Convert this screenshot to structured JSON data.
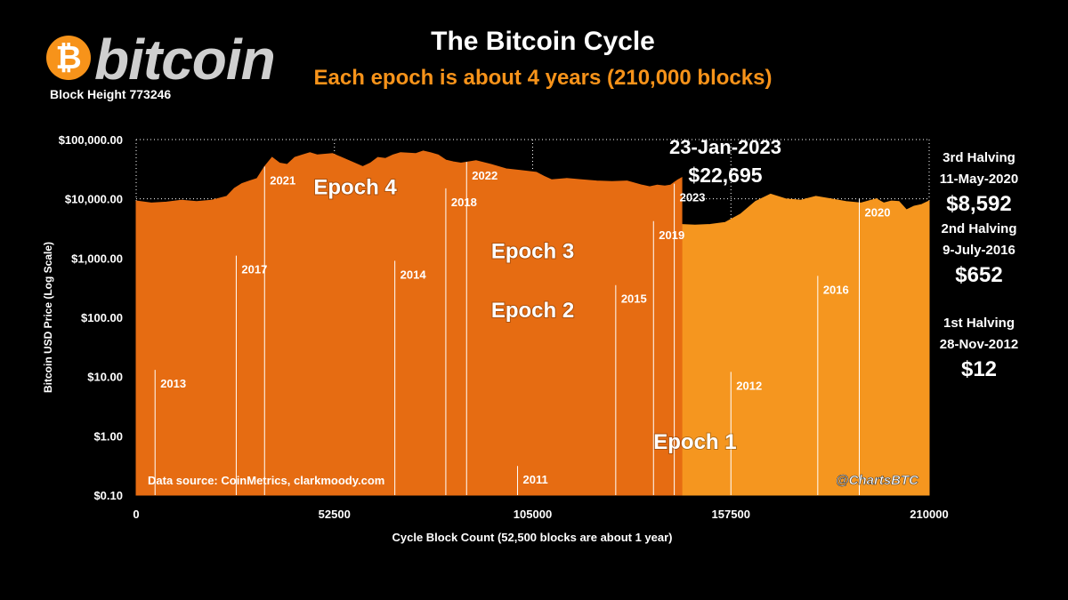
{
  "header": {
    "logo_symbol": "₿",
    "logo_text": "bitcoin",
    "block_height": "Block Height 773246",
    "title": "The Bitcoin Cycle",
    "subtitle": "Each epoch is about 4 years (210,000 blocks)"
  },
  "halvings": [
    {
      "name": "3rd Halving",
      "date": "11-May-2020",
      "price": "$8,592"
    },
    {
      "name": "2nd Halving",
      "date": "9-July-2016",
      "price": "$652"
    },
    {
      "name": "1st Halving",
      "date": "28-Nov-2012",
      "price": "$12"
    }
  ],
  "latest": {
    "date": "23-Jan-2023",
    "price": "$22,695"
  },
  "colors": {
    "background": "#000000",
    "accent": "#f7931a",
    "epoch1": "#fad4b4",
    "epoch2": "#f7bc8c",
    "epoch3": "#f5961f",
    "epoch4": "#e66c12",
    "grid": "#ffffff"
  },
  "chart_data": {
    "type": "area",
    "title": "The Bitcoin Cycle",
    "xlabel": "Cycle Block Count (52,500 blocks are about 1 year)",
    "ylabel": "Bitcoin USD Price (Log Scale)",
    "xlim": [
      0,
      210000
    ],
    "ylim": [
      0.1,
      100000
    ],
    "y_scale": "log",
    "x_ticks": [
      0,
      52500,
      105000,
      157500,
      210000
    ],
    "x_tick_labels": [
      "0",
      "52500",
      "105000",
      "157500",
      "210000"
    ],
    "y_ticks": [
      0.1,
      1,
      10,
      100,
      1000,
      10000,
      100000
    ],
    "y_tick_labels": [
      "$0.10",
      "$1.00",
      "$10.00",
      "$100.00",
      "$1,000.00",
      "$10,000.00",
      "$100,000.00"
    ],
    "grid": true,
    "series": [
      {
        "name": "Epoch 1",
        "label": "Epoch 1",
        "label_at": [
          148000,
          0.6
        ],
        "x": [
          87500,
          89000,
          91500,
          92500,
          94500,
          96500,
          99000,
          101000,
          103000,
          106000,
          108000,
          110000,
          112000,
          114000,
          116500,
          118000,
          119500,
          121000,
          122500,
          123500,
          124500,
          125500,
          126500,
          128500,
          130500,
          132500,
          134500,
          136500,
          138500,
          140500,
          142500,
          144500,
          146500,
          148000,
          149500,
          151000,
          152500,
          154000,
          155500,
          156500,
          158000,
          160000,
          162000,
          164000,
          166000,
          168000,
          170000,
          172000,
          174000,
          176000,
          178000,
          180000,
          182000,
          184000,
          186000,
          188000,
          190000,
          192000,
          194000,
          196000,
          198000,
          200000,
          202000,
          204000,
          206000,
          208000,
          210000
        ],
        "y": [
          0.1,
          0.2,
          0.3,
          0.15,
          0.22,
          0.2,
          0.25,
          0.3,
          0.32,
          0.35,
          0.4,
          0.55,
          0.9,
          0.85,
          0.95,
          0.85,
          0.9,
          1.4,
          2.5,
          3.5,
          6,
          7.5,
          9,
          8.5,
          11,
          18,
          28,
          16,
          20,
          18,
          15,
          12,
          14,
          15,
          12,
          9,
          7,
          5,
          3.5,
          3,
          2.5,
          3.3,
          4,
          4.5,
          5,
          4.2,
          4.5,
          5,
          5.5,
          5.2,
          5.3,
          5.5,
          5,
          5.5,
          6,
          7,
          7.5,
          7,
          8.5,
          10,
          11,
          11.5,
          10.5,
          11,
          11.8,
          11.5,
          12
        ]
      },
      {
        "name": "Epoch 2",
        "label": "Epoch 2",
        "label_at": [
          105000,
          100
        ],
        "x": [
          0,
          3000,
          5000,
          7000,
          9000,
          12000,
          15000,
          18000,
          20000,
          22000,
          23000,
          24500,
          26000,
          28000,
          32000,
          36000,
          40000,
          44000,
          48000,
          52000,
          56000,
          58000,
          60000,
          61500,
          63000,
          64000,
          65500,
          67000,
          68500,
          70000,
          72000,
          74000,
          76000,
          80000,
          84000,
          88000,
          92000,
          96000,
          100000,
          104000,
          108000,
          112000,
          116000,
          120000,
          124000,
          126000,
          128000,
          132000,
          136000,
          140000,
          144000,
          148000,
          152000,
          156000,
          160000,
          164000,
          168000,
          172000,
          176000,
          180000,
          184000,
          186000,
          188000,
          190000,
          192000,
          194000,
          196000,
          198000,
          200000,
          202000,
          204000,
          206000,
          208000,
          210000
        ],
        "y": [
          13,
          13,
          14,
          20,
          35,
          55,
          80,
          110,
          220,
          120,
          90,
          110,
          140,
          150,
          130,
          120,
          125,
          125,
          130,
          140,
          180,
          250,
          330,
          500,
          800,
          1000,
          900,
          700,
          600,
          1000,
          800,
          700,
          760,
          650,
          620,
          550,
          500,
          560,
          500,
          420,
          470,
          410,
          380,
          350,
          340,
          210,
          260,
          250,
          240,
          240,
          280,
          250,
          240,
          260,
          280,
          300,
          310,
          330,
          340,
          380,
          400,
          420,
          380,
          380,
          400,
          420,
          430,
          440,
          460,
          480,
          480,
          550,
          800,
          650
        ]
      },
      {
        "name": "Epoch 3",
        "label": "Epoch 3",
        "label_at": [
          105000,
          1000
        ],
        "x": [
          0,
          4000,
          8000,
          12000,
          16000,
          20000,
          24000,
          26000,
          28000,
          32000,
          36000,
          40000,
          44000,
          48000,
          50000,
          52000,
          54000,
          56000,
          58000,
          60000,
          62000,
          64000,
          66000,
          68000,
          70000,
          72000,
          74000,
          76000,
          78000,
          80000,
          82000,
          84000,
          86000,
          88000,
          92000,
          96000,
          100000,
          104000,
          108000,
          112000,
          116000,
          120000,
          124000,
          128000,
          132000,
          136000,
          140000,
          144000,
          148000,
          152000,
          156000,
          160000,
          164000,
          168000,
          172000,
          176000,
          180000,
          184000,
          188000,
          192000,
          196000,
          198000,
          200000,
          202000,
          204000,
          206000,
          208000,
          210000
        ],
        "y": [
          650,
          600,
          580,
          600,
          620,
          640,
          900,
          1100,
          1200,
          1300,
          1500,
          2500,
          3500,
          3000,
          3200,
          2600,
          3000,
          3500,
          4200,
          5000,
          5500,
          5200,
          6000,
          7500,
          9000,
          9500,
          11000,
          12000,
          17000,
          14000,
          10000,
          8000,
          11000,
          9000,
          8500,
          8000,
          7500,
          7200,
          7000,
          6500,
          7000,
          6500,
          6000,
          6200,
          5500,
          4200,
          4000,
          3700,
          3600,
          3700,
          4000,
          5500,
          9000,
          12000,
          10000,
          9500,
          11000,
          10000,
          9000,
          8500,
          10000,
          8500,
          9200,
          9000,
          6500,
          7500,
          8000,
          9200
        ]
      },
      {
        "name": "Epoch 4",
        "label": "Epoch 4",
        "label_at": [
          58000,
          12000
        ],
        "x": [
          0,
          4000,
          8000,
          12000,
          16000,
          20000,
          24000,
          26000,
          28000,
          30000,
          32000,
          34000,
          36000,
          38000,
          40000,
          42000,
          44000,
          46000,
          48000,
          52000,
          56000,
          60000,
          62000,
          64000,
          66000,
          68000,
          70000,
          74000,
          76000,
          78000,
          80000,
          82000,
          84000,
          86000,
          90000,
          94000,
          98000,
          102000,
          106000,
          108000,
          110000,
          114000,
          118000,
          122000,
          126000,
          130000,
          134000,
          136000,
          138000,
          140000,
          141500,
          142500,
          143500,
          144500
        ],
        "y": [
          9200,
          8500,
          8800,
          9500,
          9000,
          9500,
          11000,
          15000,
          18000,
          20000,
          22000,
          35000,
          50000,
          40000,
          38000,
          50000,
          55000,
          60000,
          55000,
          58000,
          45000,
          35000,
          40000,
          50000,
          48000,
          55000,
          60000,
          58000,
          64000,
          60000,
          55000,
          45000,
          42000,
          40000,
          44000,
          38000,
          32000,
          30000,
          28000,
          24000,
          21000,
          22000,
          21000,
          20000,
          19500,
          20000,
          17000,
          16000,
          17000,
          16500,
          17000,
          19000,
          21000,
          22695
        ]
      }
    ],
    "year_markers": [
      {
        "label": "2011",
        "x": 101000,
        "y": 0.31
      },
      {
        "label": "2012",
        "x": 157500,
        "y": 12
      },
      {
        "label": "2013",
        "x": 5000,
        "y": 13
      },
      {
        "label": "2014",
        "x": 68500,
        "y": 900
      },
      {
        "label": "2015",
        "x": 127000,
        "y": 350
      },
      {
        "label": "2016",
        "x": 180500,
        "y": 500
      },
      {
        "label": "2017",
        "x": 26500,
        "y": 1100
      },
      {
        "label": "2018",
        "x": 82000,
        "y": 15000
      },
      {
        "label": "2019",
        "x": 137000,
        "y": 4200
      },
      {
        "label": "2020",
        "x": 191500,
        "y": 10000
      },
      {
        "label": "2021",
        "x": 34000,
        "y": 35000
      },
      {
        "label": "2022",
        "x": 87500,
        "y": 42000
      },
      {
        "label": "2023",
        "x": 142500,
        "y": 18000
      }
    ],
    "annotations": [
      {
        "text": "Data source:  CoinMetrics, clarkmoody.com",
        "position": "bottom-left"
      },
      {
        "text": "@ChartsBTC",
        "position": "bottom-right"
      }
    ]
  }
}
